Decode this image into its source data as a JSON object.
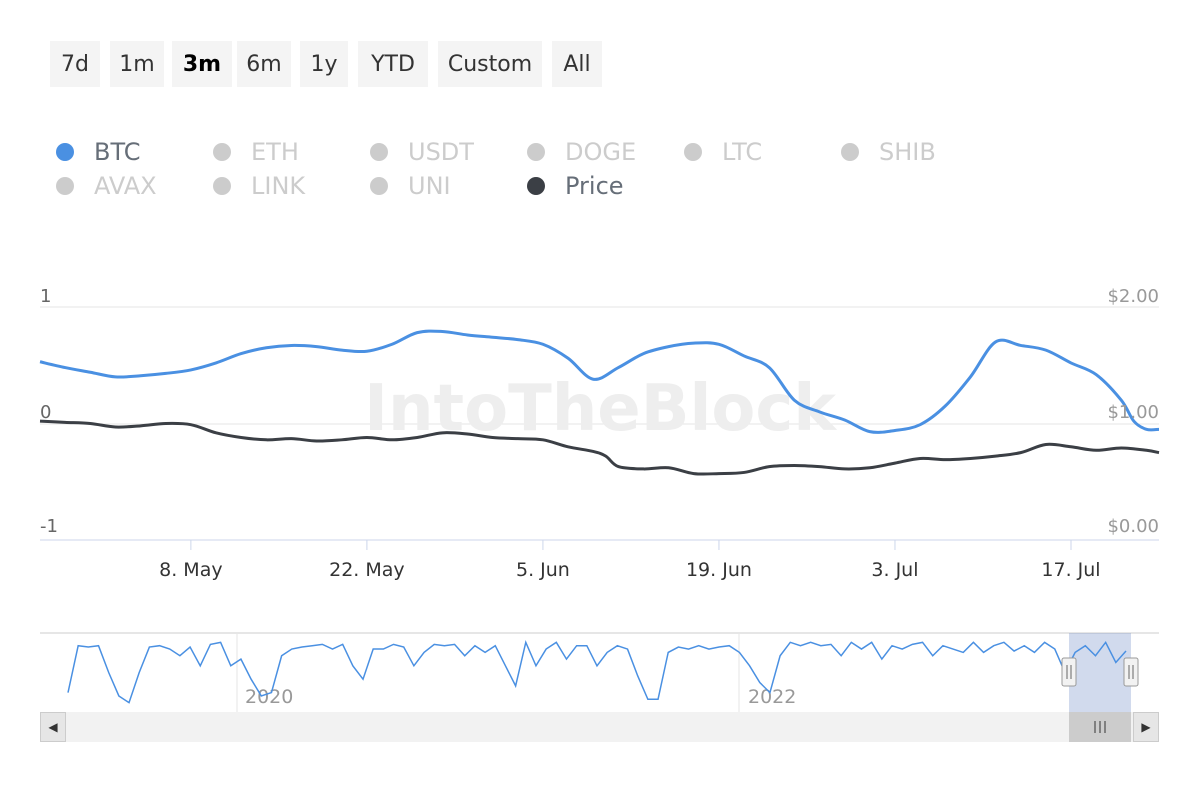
{
  "range_selector": {
    "buttons": [
      "7d",
      "1m",
      "3m",
      "6m",
      "1y",
      "YTD",
      "Custom",
      "All"
    ],
    "selected": "3m"
  },
  "legend": {
    "items": [
      {
        "label": "BTC",
        "active": true,
        "color": "#4a90e2"
      },
      {
        "label": "ETH",
        "active": false,
        "color": "#cccccc"
      },
      {
        "label": "USDT",
        "active": false,
        "color": "#cccccc"
      },
      {
        "label": "DOGE",
        "active": false,
        "color": "#cccccc"
      },
      {
        "label": "LTC",
        "active": false,
        "color": "#cccccc"
      },
      {
        "label": "SHIB",
        "active": false,
        "color": "#cccccc"
      },
      {
        "label": "AVAX",
        "active": false,
        "color": "#cccccc"
      },
      {
        "label": "LINK",
        "active": false,
        "color": "#cccccc"
      },
      {
        "label": "UNI",
        "active": false,
        "color": "#cccccc"
      },
      {
        "label": "Price",
        "active": true,
        "color": "#3b3f45"
      }
    ]
  },
  "watermark": "IntoTheBlock",
  "chart_data": {
    "type": "line",
    "grid": true,
    "x_ticks": [
      {
        "label": "8. May",
        "day": 12
      },
      {
        "label": "22. May",
        "day": 26
      },
      {
        "label": "5. Jun",
        "day": 40
      },
      {
        "label": "19. Jun",
        "day": 54
      },
      {
        "label": "3. Jul",
        "day": 68
      },
      {
        "label": "17. Jul",
        "day": 82
      }
    ],
    "x_range": [
      0,
      89
    ],
    "y_left": {
      "ticks": [
        "1",
        "0",
        "-1"
      ],
      "values": [
        1,
        0,
        -1
      ],
      "range": [
        -1,
        1
      ]
    },
    "y_right": {
      "ticks": [
        "$2.00",
        "$1.00",
        "$0.00"
      ],
      "values": [
        2,
        1,
        0
      ],
      "range": [
        0,
        2
      ]
    },
    "series": [
      {
        "name": "BTC",
        "axis": "left",
        "color": "#4a90e2",
        "points": [
          [
            0,
            0.53
          ],
          [
            2,
            0.48
          ],
          [
            4,
            0.44
          ],
          [
            6,
            0.4
          ],
          [
            8,
            0.41
          ],
          [
            10,
            0.43
          ],
          [
            12,
            0.46
          ],
          [
            14,
            0.52
          ],
          [
            16,
            0.6
          ],
          [
            18,
            0.65
          ],
          [
            20,
            0.67
          ],
          [
            22,
            0.66
          ],
          [
            24,
            0.63
          ],
          [
            26,
            0.62
          ],
          [
            28,
            0.68
          ],
          [
            30,
            0.78
          ],
          [
            32,
            0.79
          ],
          [
            34,
            0.76
          ],
          [
            36,
            0.74
          ],
          [
            38,
            0.72
          ],
          [
            40,
            0.68
          ],
          [
            42,
            0.56
          ],
          [
            44,
            0.38
          ],
          [
            46,
            0.48
          ],
          [
            48,
            0.6
          ],
          [
            50,
            0.66
          ],
          [
            52,
            0.69
          ],
          [
            54,
            0.68
          ],
          [
            56,
            0.58
          ],
          [
            58,
            0.48
          ],
          [
            60,
            0.2
          ],
          [
            62,
            0.1
          ],
          [
            64,
            0.03
          ],
          [
            66,
            -0.07
          ],
          [
            68,
            -0.06
          ],
          [
            70,
            -0.01
          ],
          [
            72,
            0.15
          ],
          [
            74,
            0.4
          ],
          [
            76,
            0.7
          ],
          [
            78,
            0.67
          ],
          [
            80,
            0.63
          ],
          [
            82,
            0.52
          ],
          [
            84,
            0.42
          ],
          [
            86,
            0.2
          ],
          [
            87,
            0.02
          ],
          [
            88,
            -0.05
          ],
          [
            89,
            -0.05
          ]
        ]
      },
      {
        "name": "Price",
        "axis": "right",
        "color": "#3b3f45",
        "points": [
          [
            0,
            1.02
          ],
          [
            2,
            1.01
          ],
          [
            4,
            1.0
          ],
          [
            6,
            0.97
          ],
          [
            8,
            0.98
          ],
          [
            10,
            1.0
          ],
          [
            12,
            0.99
          ],
          [
            14,
            0.92
          ],
          [
            16,
            0.88
          ],
          [
            18,
            0.86
          ],
          [
            20,
            0.87
          ],
          [
            22,
            0.85
          ],
          [
            24,
            0.86
          ],
          [
            26,
            0.88
          ],
          [
            28,
            0.86
          ],
          [
            30,
            0.88
          ],
          [
            32,
            0.92
          ],
          [
            34,
            0.91
          ],
          [
            36,
            0.88
          ],
          [
            38,
            0.87
          ],
          [
            40,
            0.86
          ],
          [
            42,
            0.8
          ],
          [
            44,
            0.76
          ],
          [
            45,
            0.72
          ],
          [
            46,
            0.63
          ],
          [
            48,
            0.61
          ],
          [
            50,
            0.62
          ],
          [
            52,
            0.57
          ],
          [
            54,
            0.57
          ],
          [
            56,
            0.58
          ],
          [
            58,
            0.63
          ],
          [
            60,
            0.64
          ],
          [
            62,
            0.63
          ],
          [
            64,
            0.61
          ],
          [
            66,
            0.62
          ],
          [
            68,
            0.66
          ],
          [
            70,
            0.7
          ],
          [
            72,
            0.69
          ],
          [
            74,
            0.7
          ],
          [
            76,
            0.72
          ],
          [
            78,
            0.75
          ],
          [
            80,
            0.82
          ],
          [
            82,
            0.8
          ],
          [
            84,
            0.77
          ],
          [
            86,
            0.79
          ],
          [
            88,
            0.77
          ],
          [
            89,
            0.75
          ]
        ]
      }
    ],
    "navigator": {
      "year_labels": [
        "2020",
        "2022"
      ],
      "series": [
        0.2,
        0.9,
        0.88,
        0.9,
        0.5,
        0.15,
        0.05,
        0.5,
        0.88,
        0.9,
        0.85,
        0.75,
        0.88,
        0.6,
        0.92,
        0.95,
        0.6,
        0.7,
        0.4,
        0.15,
        0.2,
        0.75,
        0.85,
        0.88,
        0.9,
        0.92,
        0.85,
        0.92,
        0.6,
        0.4,
        0.85,
        0.85,
        0.92,
        0.88,
        0.6,
        0.8,
        0.92,
        0.9,
        0.92,
        0.75,
        0.9,
        0.8,
        0.9,
        0.6,
        0.3,
        0.95,
        0.6,
        0.85,
        0.95,
        0.7,
        0.9,
        0.9,
        0.6,
        0.8,
        0.9,
        0.85,
        0.45,
        0.1,
        0.1,
        0.8,
        0.88,
        0.85,
        0.9,
        0.85,
        0.88,
        0.9,
        0.8,
        0.6,
        0.35,
        0.2,
        0.75,
        0.95,
        0.9,
        0.95,
        0.9,
        0.92,
        0.75,
        0.95,
        0.85,
        0.95,
        0.7,
        0.9,
        0.85,
        0.92,
        0.95,
        0.75,
        0.9,
        0.85,
        0.8,
        0.95,
        0.8,
        0.9,
        0.95,
        0.82,
        0.9,
        0.8,
        0.95,
        0.85,
        0.5,
        0.8,
        0.9,
        0.75,
        0.95,
        0.65,
        0.82
      ]
    }
  }
}
